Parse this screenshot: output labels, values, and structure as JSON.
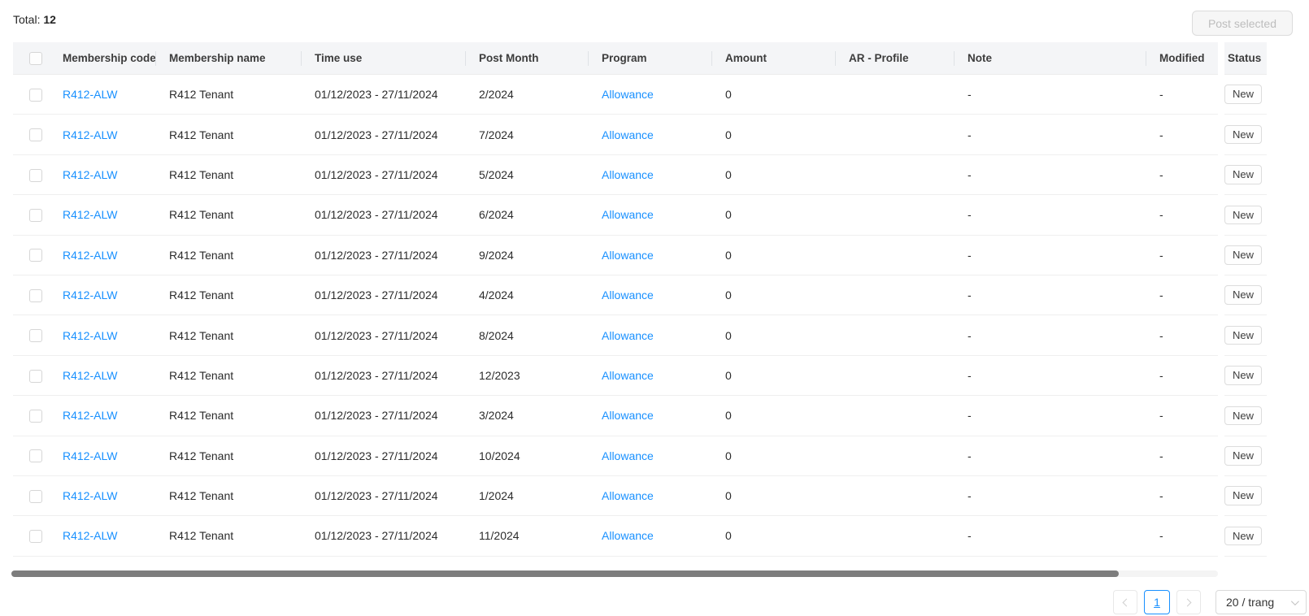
{
  "topbar": {
    "total_label": "Total:",
    "total_value": "12",
    "post_button_label": "Post selected"
  },
  "table": {
    "columns": [
      "Membership code",
      "Membership name",
      "Time use",
      "Post Month",
      "Program",
      "Amount",
      "AR - Profile",
      "Note",
      "Modified"
    ],
    "status_column_label": "Status",
    "rows": [
      {
        "code": "R412-ALW",
        "name": "R412 Tenant",
        "time_use": "01/12/2023 - 27/11/2024",
        "post_month": "2/2024",
        "program": "Allowance",
        "amount": "0",
        "ar_profile": "",
        "note": "-",
        "modified": "-",
        "status": "New"
      },
      {
        "code": "R412-ALW",
        "name": "R412 Tenant",
        "time_use": "01/12/2023 - 27/11/2024",
        "post_month": "7/2024",
        "program": "Allowance",
        "amount": "0",
        "ar_profile": "",
        "note": "-",
        "modified": "-",
        "status": "New"
      },
      {
        "code": "R412-ALW",
        "name": "R412 Tenant",
        "time_use": "01/12/2023 - 27/11/2024",
        "post_month": "5/2024",
        "program": "Allowance",
        "amount": "0",
        "ar_profile": "",
        "note": "-",
        "modified": "-",
        "status": "New"
      },
      {
        "code": "R412-ALW",
        "name": "R412 Tenant",
        "time_use": "01/12/2023 - 27/11/2024",
        "post_month": "6/2024",
        "program": "Allowance",
        "amount": "0",
        "ar_profile": "",
        "note": "-",
        "modified": "-",
        "status": "New"
      },
      {
        "code": "R412-ALW",
        "name": "R412 Tenant",
        "time_use": "01/12/2023 - 27/11/2024",
        "post_month": "9/2024",
        "program": "Allowance",
        "amount": "0",
        "ar_profile": "",
        "note": "-",
        "modified": "-",
        "status": "New"
      },
      {
        "code": "R412-ALW",
        "name": "R412 Tenant",
        "time_use": "01/12/2023 - 27/11/2024",
        "post_month": "4/2024",
        "program": "Allowance",
        "amount": "0",
        "ar_profile": "",
        "note": "-",
        "modified": "-",
        "status": "New"
      },
      {
        "code": "R412-ALW",
        "name": "R412 Tenant",
        "time_use": "01/12/2023 - 27/11/2024",
        "post_month": "8/2024",
        "program": "Allowance",
        "amount": "0",
        "ar_profile": "",
        "note": "-",
        "modified": "-",
        "status": "New"
      },
      {
        "code": "R412-ALW",
        "name": "R412 Tenant",
        "time_use": "01/12/2023 - 27/11/2024",
        "post_month": "12/2023",
        "program": "Allowance",
        "amount": "0",
        "ar_profile": "",
        "note": "-",
        "modified": "-",
        "status": "New"
      },
      {
        "code": "R412-ALW",
        "name": "R412 Tenant",
        "time_use": "01/12/2023 - 27/11/2024",
        "post_month": "3/2024",
        "program": "Allowance",
        "amount": "0",
        "ar_profile": "",
        "note": "-",
        "modified": "-",
        "status": "New"
      },
      {
        "code": "R412-ALW",
        "name": "R412 Tenant",
        "time_use": "01/12/2023 - 27/11/2024",
        "post_month": "10/2024",
        "program": "Allowance",
        "amount": "0",
        "ar_profile": "",
        "note": "-",
        "modified": "-",
        "status": "New"
      },
      {
        "code": "R412-ALW",
        "name": "R412 Tenant",
        "time_use": "01/12/2023 - 27/11/2024",
        "post_month": "1/2024",
        "program": "Allowance",
        "amount": "0",
        "ar_profile": "",
        "note": "-",
        "modified": "-",
        "status": "New"
      },
      {
        "code": "R412-ALW",
        "name": "R412 Tenant",
        "time_use": "01/12/2023 - 27/11/2024",
        "post_month": "11/2024",
        "program": "Allowance",
        "amount": "0",
        "ar_profile": "",
        "note": "-",
        "modified": "-",
        "status": "New"
      }
    ]
  },
  "pagination": {
    "prev_icon": "chevron-left",
    "next_icon": "chevron-right",
    "current_page": "1",
    "page_size_label": "20 / trang",
    "page_size_icon": "chevron-down"
  },
  "colors": {
    "link": "#1890ff",
    "active_page": "#1890ff",
    "header_bg": "#f4f5f7"
  }
}
